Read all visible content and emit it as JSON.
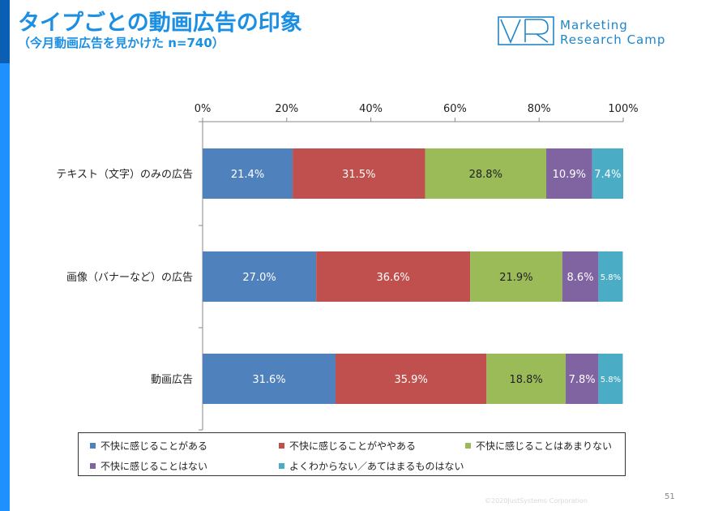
{
  "header": {
    "title": "タイプごとの動画広告の印象",
    "subtitle": "（今月動画広告を見かけた n=740）",
    "brand_line1": "Marketing",
    "brand_line2": "Research Camp",
    "brand_color": "#1f86c9",
    "title_color": "#1a8fe3"
  },
  "footer": {
    "copyright": "©2020JustSystems Corporation",
    "page_number": "51"
  },
  "chart_data": {
    "type": "bar",
    "orientation": "horizontal",
    "stacked": true,
    "categories": [
      "テキスト（文字）のみの広告",
      "画像（バナーなど）の広告",
      "動画広告"
    ],
    "series": [
      {
        "name": "不快に感じることがある",
        "color": "#4f81bd",
        "label_color": "#ffffff",
        "values": [
          21.4,
          27.0,
          31.6
        ],
        "labels": [
          "21.4%",
          "27.0%",
          "31.6%"
        ]
      },
      {
        "name": "不快に感じることがややある",
        "color": "#c0504d",
        "label_color": "#ffffff",
        "values": [
          31.5,
          36.6,
          35.9
        ],
        "labels": [
          "31.5%",
          "36.6%",
          "35.9%"
        ]
      },
      {
        "name": "不快に感じることはあまりない",
        "color": "#9bbb59",
        "label_color": "#222222",
        "values": [
          28.8,
          21.9,
          18.8
        ],
        "labels": [
          "28.8%",
          "21.9%",
          "18.8%"
        ]
      },
      {
        "name": "不快に感じることはない",
        "color": "#8064a2",
        "label_color": "#ffffff",
        "values": [
          10.9,
          8.6,
          7.8
        ],
        "labels": [
          "10.9%",
          "8.6%",
          "7.8%"
        ]
      },
      {
        "name": "よくわからない／あてはまるものはない",
        "color": "#4bacc6",
        "label_color": "#ffffff",
        "values": [
          7.4,
          5.8,
          5.8
        ],
        "labels": [
          "7.4%",
          "5.8%",
          "5.8%"
        ]
      }
    ],
    "xlim": [
      0,
      100
    ],
    "ticks": [
      0,
      20,
      40,
      60,
      80,
      100
    ],
    "tick_labels": [
      "0%",
      "20%",
      "40%",
      "60%",
      "80%",
      "100%"
    ],
    "grid": false,
    "legend_position": "bottom"
  }
}
